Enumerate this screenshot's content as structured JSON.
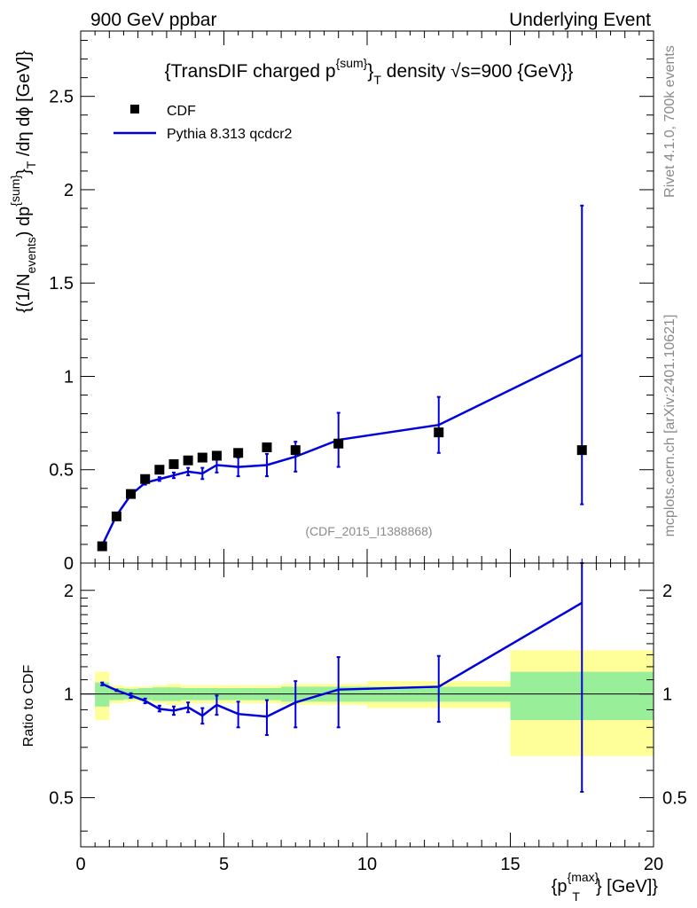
{
  "header": {
    "left": "900 GeV ppbar",
    "right": "Underlying Event"
  },
  "side_labels": {
    "top": "Rivet 4.1.0,  700k events",
    "bottom": "mcplots.cern.ch [arXiv:2401.10621]"
  },
  "chart_data": [
    {
      "type": "scatter",
      "panel": "main",
      "title": "{TransDIF charged p^{sum}_T density √s=900 {GeV}}",
      "title_parts": {
        "pre": "{TransDIF charged p",
        "sup": "{sum}",
        "close": "}",
        "sub": "T",
        "post1": " density ",
        "sqrt": "√",
        "post2": "s=900 {GeV}}"
      },
      "ylabel": "{(1/N_{events}) dp^{sum}_T /dη dϕ [GeV]}",
      "ylabel_parts": {
        "a": "{(1/N",
        "b": "events",
        "c": ") dp",
        "d": "{sum}",
        "e": "}",
        "f": "T",
        "g": " /dη  dϕ [GeV]}"
      },
      "watermark": "(CDF_2015_I1388868)",
      "xlim": [
        0,
        20
      ],
      "ylim": [
        0,
        2.85
      ],
      "y_ticks": [
        "0",
        "0.5",
        "1",
        "1.5",
        "2",
        "2.5"
      ],
      "y_tick_values": [
        0,
        0.5,
        1,
        1.5,
        2,
        2.5
      ],
      "legend": {
        "position": "top-left",
        "entries": [
          "CDF",
          "Pythia 8.313 qcdcr2"
        ]
      },
      "series": [
        {
          "name": "CDF",
          "style": "markers",
          "color": "#000000",
          "x": [
            0.75,
            1.25,
            1.75,
            2.25,
            2.75,
            3.25,
            3.75,
            4.25,
            4.75,
            5.5,
            6.5,
            7.5,
            9.0,
            12.5,
            17.5
          ],
          "y": [
            0.09,
            0.25,
            0.37,
            0.45,
            0.5,
            0.53,
            0.55,
            0.565,
            0.575,
            0.59,
            0.62,
            0.605,
            0.64,
            0.7,
            0.605
          ]
        },
        {
          "name": "Pythia 8.313 qcdcr2",
          "style": "line",
          "color": "#0000dd",
          "x": [
            0.75,
            1.25,
            1.75,
            2.25,
            2.75,
            3.25,
            3.75,
            4.25,
            4.75,
            5.5,
            6.5,
            7.5,
            9.0,
            12.5,
            17.5
          ],
          "y": [
            0.095,
            0.255,
            0.365,
            0.43,
            0.45,
            0.47,
            0.49,
            0.48,
            0.525,
            0.515,
            0.525,
            0.57,
            0.66,
            0.74,
            1.115
          ],
          "yerr": [
            0.003,
            0.005,
            0.008,
            0.01,
            0.01,
            0.015,
            0.02,
            0.03,
            0.04,
            0.05,
            0.06,
            0.08,
            0.145,
            0.15,
            0.8
          ]
        }
      ]
    },
    {
      "type": "line",
      "panel": "ratio",
      "ylabel": "Ratio to CDF",
      "xlabel": "{p^{max}_T} [GeV]}",
      "xlabel_parts": {
        "a": "{p",
        "b": "{max}",
        "c": "T",
        "d": "} [GeV]}"
      },
      "xlim": [
        0,
        20
      ],
      "ylim": [
        0.36,
        2.4
      ],
      "y_scale": "log",
      "x_ticks": [
        "0",
        "5",
        "10",
        "15",
        "20"
      ],
      "x_tick_values": [
        0,
        5,
        10,
        15,
        20
      ],
      "y_ticks": [
        "0.5",
        "1",
        "2"
      ],
      "y_tick_values": [
        0.5,
        1,
        2
      ],
      "reference_line": 1,
      "bands": {
        "bin_edges": [
          0.5,
          1,
          1.5,
          2,
          2.5,
          3,
          3.5,
          4,
          4.5,
          5,
          6,
          7,
          8,
          10,
          15,
          20
        ],
        "inner": [
          0.08,
          0.04,
          0.035,
          0.04,
          0.045,
          0.045,
          0.04,
          0.04,
          0.04,
          0.04,
          0.04,
          0.05,
          0.05,
          0.05,
          0.16
        ],
        "outer": [
          0.16,
          0.06,
          0.05,
          0.05,
          0.06,
          0.07,
          0.06,
          0.06,
          0.06,
          0.06,
          0.06,
          0.07,
          0.07,
          0.09,
          0.34
        ],
        "inner_color": "#99ee99",
        "outer_color": "#ffff99"
      },
      "series": [
        {
          "name": "Pythia 8.313 qcdcr2 / CDF",
          "color": "#0000dd",
          "x": [
            0.75,
            1.25,
            1.75,
            2.25,
            2.75,
            3.25,
            3.75,
            4.25,
            4.75,
            5.5,
            6.5,
            7.5,
            9.0,
            12.5,
            17.5
          ],
          "y": [
            1.07,
            1.025,
            0.99,
            0.955,
            0.905,
            0.895,
            0.915,
            0.865,
            0.93,
            0.875,
            0.86,
            0.945,
            1.03,
            1.05,
            1.84
          ],
          "ylow": [
            1.06,
            1.02,
            0.975,
            0.94,
            0.89,
            0.87,
            0.885,
            0.82,
            0.87,
            0.8,
            0.76,
            0.8,
            0.8,
            0.83,
            0.52
          ],
          "yhigh": [
            1.08,
            1.03,
            1.005,
            0.97,
            0.925,
            0.92,
            0.945,
            0.91,
            0.99,
            0.95,
            0.96,
            1.09,
            1.28,
            1.29,
            2.4
          ]
        }
      ]
    }
  ]
}
